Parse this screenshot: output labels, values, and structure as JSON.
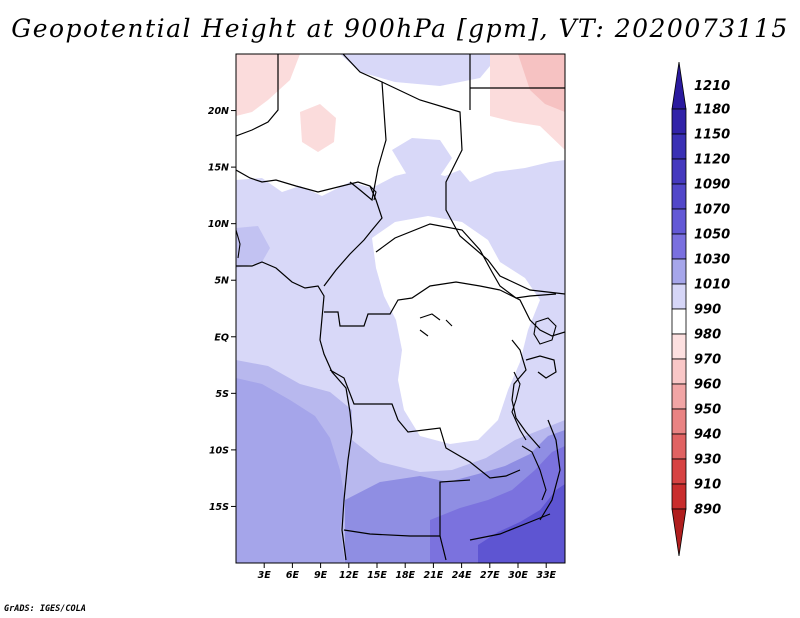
{
  "title": "Geopotential Height at 900hPa [gpm], VT: 2020073115",
  "credit": "GrADS: IGES/COLA",
  "map": {
    "region": "Central Africa",
    "longitude_range": [
      0,
      35
    ],
    "latitude_range": [
      -20,
      25
    ],
    "lat_ticks": [
      {
        "value": 20,
        "label": "20N"
      },
      {
        "value": 15,
        "label": "15N"
      },
      {
        "value": 10,
        "label": "10N"
      },
      {
        "value": 5,
        "label": "5N"
      },
      {
        "value": 0,
        "label": "EQ"
      },
      {
        "value": -5,
        "label": "5S"
      },
      {
        "value": -10,
        "label": "10S"
      },
      {
        "value": -15,
        "label": "15S"
      }
    ],
    "lon_ticks": [
      {
        "value": 3,
        "label": "3E"
      },
      {
        "value": 6,
        "label": "6E"
      },
      {
        "value": 9,
        "label": "9E"
      },
      {
        "value": 12,
        "label": "12E"
      },
      {
        "value": 15,
        "label": "15E"
      },
      {
        "value": 18,
        "label": "18E"
      },
      {
        "value": 21,
        "label": "21E"
      },
      {
        "value": 24,
        "label": "24E"
      },
      {
        "value": 27,
        "label": "27E"
      },
      {
        "value": 30,
        "label": "30E"
      },
      {
        "value": 33,
        "label": "33E"
      }
    ]
  },
  "colorbar": {
    "levels": [
      "1210",
      "1180",
      "1150",
      "1120",
      "1090",
      "1070",
      "1050",
      "1030",
      "1010",
      "990",
      "980",
      "970",
      "960",
      "950",
      "940",
      "930",
      "910",
      "890"
    ],
    "colors": [
      "#2a1a9e",
      "#3123a8",
      "#3a30b4",
      "#4539be",
      "#5247c9",
      "#6359d6",
      "#7a70df",
      "#a6a6ea",
      "#d6d6f7",
      "#ffffff",
      "#fde0e0",
      "#f9c7c7",
      "#f1a5a5",
      "#e98383",
      "#e06262",
      "#d74343",
      "#c92d2d",
      "#b01e1e"
    ]
  }
}
